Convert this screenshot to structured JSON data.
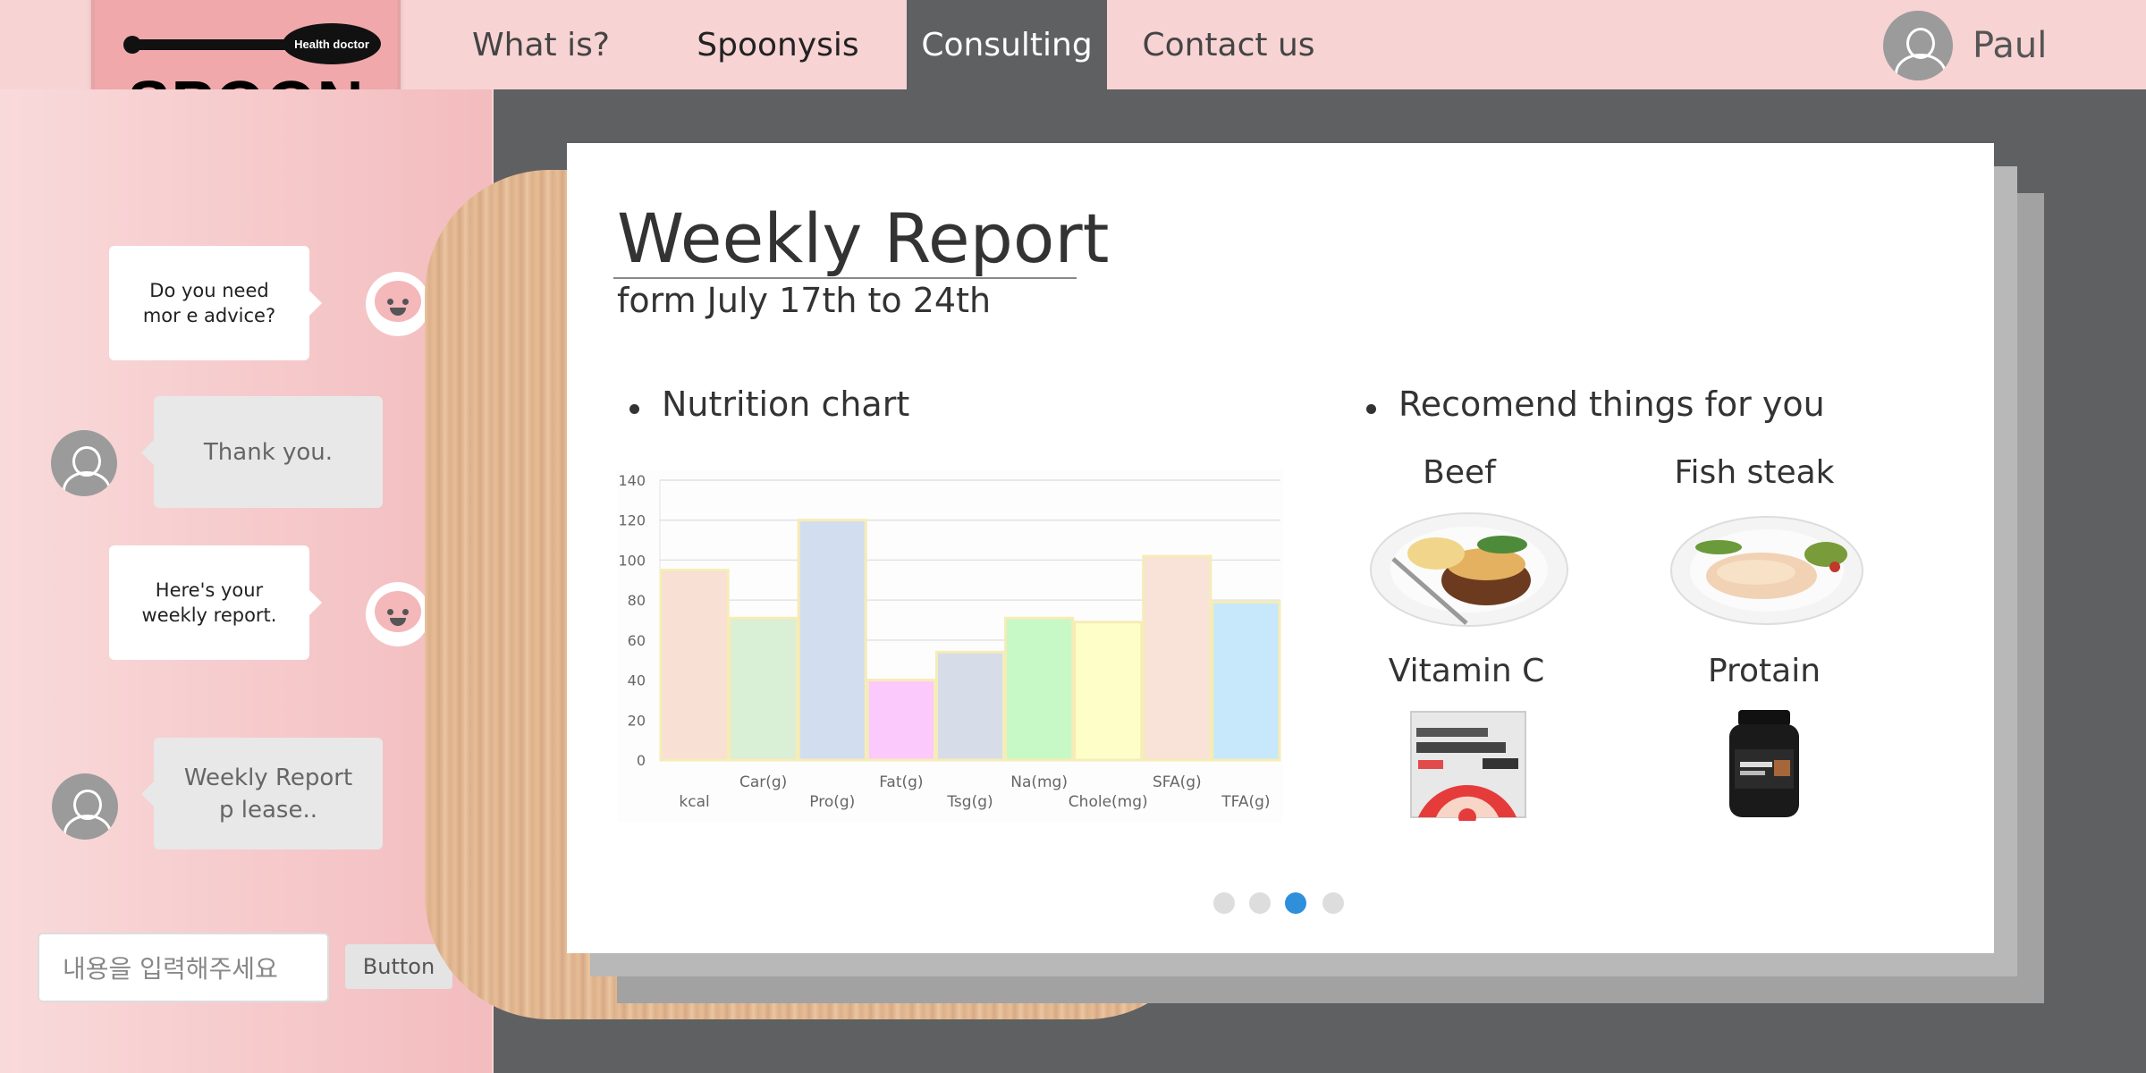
{
  "logo": {
    "badge": "Health doctor",
    "wordmark": "SPOON"
  },
  "nav": {
    "items": [
      {
        "label": "What is?"
      },
      {
        "label": "Spoonysis"
      },
      {
        "label": "Consulting"
      },
      {
        "label": "Contact us"
      }
    ],
    "active": "Consulting"
  },
  "user": {
    "name": "Paul"
  },
  "chat": {
    "messages": [
      {
        "from": "bot",
        "text": "Do you need mor e advice?"
      },
      {
        "from": "user",
        "text": "Thank you."
      },
      {
        "from": "bot",
        "text": "Here's your weekly report."
      },
      {
        "from": "user",
        "text": "Weekly Report p lease.."
      }
    ],
    "input_placeholder": "내용을 입력해주세요",
    "send_label": "Button"
  },
  "report": {
    "title": "Weekly Report",
    "range": "form July 17th  to 24th",
    "nutrition_heading": "Nutrition chart",
    "recommend_heading": "Recomend things for you",
    "recommendations": [
      {
        "name": "Beef",
        "icon": "beef-dish-image"
      },
      {
        "name": "Fish steak",
        "icon": "fish-steak-dish-image"
      },
      {
        "name": "Vitamin C",
        "icon": "vitamin-c-box-image"
      },
      {
        "name": "Protain",
        "icon": "protein-jar-image"
      }
    ]
  },
  "carousel": {
    "count": 4,
    "active_index": 2
  },
  "colors": {
    "nav_active": "#5f6061",
    "accent": "#2f8fdb",
    "panel_pink": "#f8d3d4"
  },
  "chart_data": {
    "type": "bar",
    "categories": [
      "kcal",
      "Car(g)",
      "Pro(g)",
      "Fat(g)",
      "Tsg(g)",
      "Na(mg)",
      "Chole(mg)",
      "SFA(g)",
      "TFA(g)"
    ],
    "values": [
      95,
      71,
      120,
      40,
      54,
      71,
      69,
      102,
      79
    ],
    "bar_colors": [
      "#f9e0d4",
      "#d9efd6",
      "#d2ddf0",
      "#fbc9fb",
      "#d6dde8",
      "#c6f9c6",
      "#fefec8",
      "#f9e2d7",
      "#c6e8fa"
    ],
    "ylim": [
      0,
      140
    ],
    "yticks": [
      0,
      20,
      40,
      60,
      80,
      100,
      120,
      140
    ],
    "grid": true
  }
}
